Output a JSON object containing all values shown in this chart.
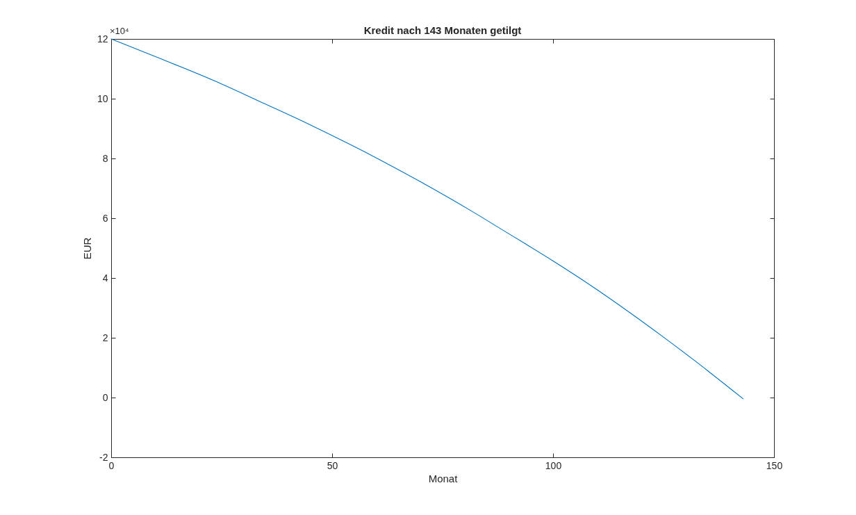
{
  "chart_data": {
    "type": "line",
    "title": "Kredit nach 143 Monaten getilgt",
    "xlabel": "Monat",
    "ylabel": "EUR",
    "annotations": [
      "×10⁴"
    ],
    "x": [
      0,
      12,
      23,
      33,
      45,
      50,
      60,
      70,
      82,
      88,
      94,
      100,
      106,
      125,
      132,
      143
    ],
    "series": [
      {
        "color": "#0072bd",
        "values": [
          12.0,
          11.29,
          10.62,
          9.95,
          9.13,
          8.77,
          8.02,
          7.22,
          6.2,
          5.66,
          5.12,
          4.57,
          4.0,
          2.02,
          1.24,
          -0.04
        ]
      }
    ],
    "xlim": [
      0,
      150
    ],
    "xticks": [
      0,
      50,
      100,
      150
    ],
    "ylim": [
      -2,
      12
    ],
    "yticks": [
      -2,
      0,
      2,
      4,
      6,
      8,
      10,
      12
    ],
    "line_style": "solid"
  }
}
